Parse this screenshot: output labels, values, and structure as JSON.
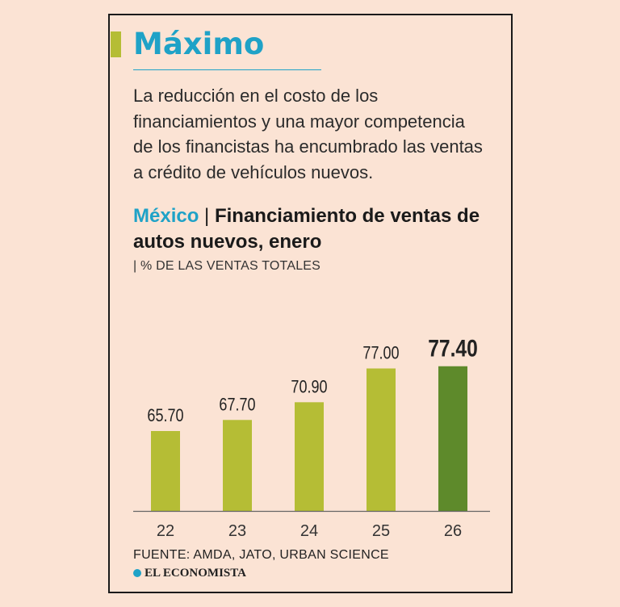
{
  "header": {
    "title": "Máximo",
    "intro": "La reducción en el costo de los financiamientos y una mayor competencia de los financistas ha encumbrado las ventas a crédito de vehículos nuevos."
  },
  "chart_meta": {
    "country": "México",
    "separator": "|",
    "heading": "Financiamiento de ventas de autos nuevos, enero",
    "units": "| % DE LAS VENTAS TOTALES"
  },
  "footer": {
    "source": "FUENTE: AMDA, JATO, URBAN SCIENCE",
    "brand": "EL ECONOMISTA"
  },
  "colors": {
    "accent": "#1fa2c7",
    "bar": "#b5bd35",
    "bar_highlight": "#5e8a2b"
  },
  "chart_data": {
    "type": "bar",
    "categories": [
      "22",
      "23",
      "24",
      "25",
      "26"
    ],
    "values": [
      65.7,
      67.7,
      70.9,
      77.0,
      77.4
    ],
    "value_labels": [
      "65.70",
      "67.70",
      "70.90",
      "77.00",
      "77.40"
    ],
    "highlight_index": 4,
    "title": "Financiamiento de ventas de autos nuevos, enero",
    "ylabel": "% DE LAS VENTAS TOTALES",
    "xlabel": "",
    "grid": false
  }
}
